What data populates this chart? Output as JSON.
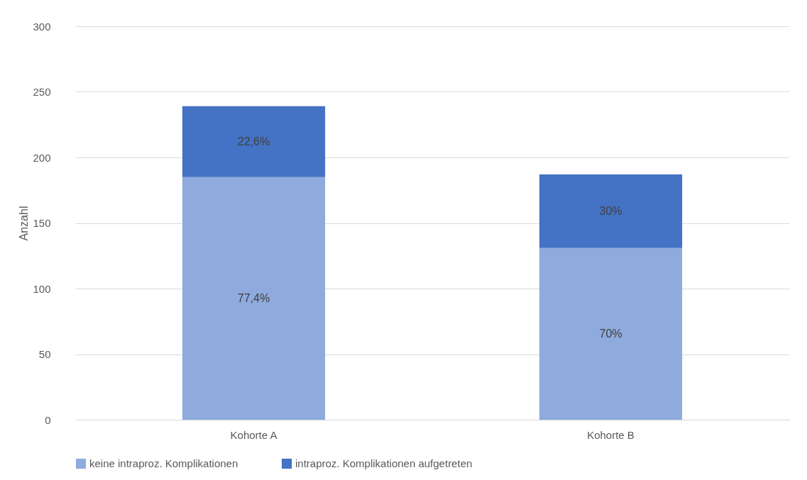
{
  "chart_data": {
    "type": "bar",
    "ylabel": "Anzahl",
    "categories": [
      "Kohorte A",
      "Kohorte B"
    ],
    "stacked": true,
    "series": [
      {
        "name": "keine intraproz. Komplikationen",
        "color": "#8faadc",
        "values": [
          185,
          131
        ]
      },
      {
        "name": "intraproz. Komplikationen aufgetreten",
        "color": "#4472c4",
        "values": [
          54,
          56
        ]
      }
    ],
    "annotations": [
      "77,4%",
      "70%",
      "22,6%",
      "30%"
    ],
    "ylim": [
      0,
      300
    ],
    "yticks": [
      0,
      50,
      100,
      150,
      200,
      250,
      300
    ],
    "grid": "y",
    "legend": "bottom"
  }
}
